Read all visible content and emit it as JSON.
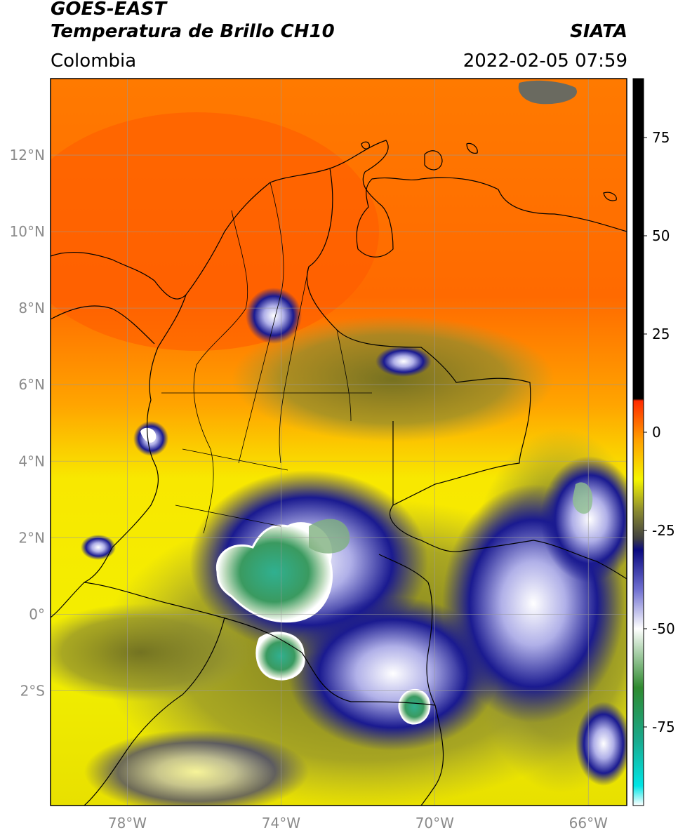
{
  "header": {
    "satellite": "GOES-EAST",
    "product": "Temperatura de Brillo CH10",
    "region": "Colombia",
    "agency": "SIATA",
    "datetime": "2022-02-05 07:59"
  },
  "map": {
    "lon_range": [
      -80,
      -65
    ],
    "lat_range": [
      -5,
      14
    ],
    "lat_ticks": [
      {
        "value": 12,
        "label": "12°N"
      },
      {
        "value": 10,
        "label": "10°N"
      },
      {
        "value": 8,
        "label": "8°N"
      },
      {
        "value": 6,
        "label": "6°N"
      },
      {
        "value": 4,
        "label": "4°N"
      },
      {
        "value": 2,
        "label": "2°N"
      },
      {
        "value": 0,
        "label": "0°"
      },
      {
        "value": -2,
        "label": "2°S"
      }
    ],
    "lon_ticks": [
      {
        "value": -78,
        "label": "78°W"
      },
      {
        "value": -74,
        "label": "74°W"
      },
      {
        "value": -70,
        "label": "70°W"
      },
      {
        "value": -66,
        "label": "66°W"
      }
    ],
    "grid": true
  },
  "colorbar": {
    "range": [
      -95,
      90
    ],
    "ticks": [
      {
        "value": 75,
        "label": "75"
      },
      {
        "value": 50,
        "label": "50"
      },
      {
        "value": 25,
        "label": "25"
      },
      {
        "value": 0,
        "label": "0"
      },
      {
        "value": -25,
        "label": "-25"
      },
      {
        "value": -50,
        "label": "-50"
      },
      {
        "value": -75,
        "label": "-75"
      }
    ],
    "stops": [
      {
        "value": -95,
        "color": "#ffffff"
      },
      {
        "value": -90,
        "color": "#00e5e5"
      },
      {
        "value": -78,
        "color": "#1aa88a"
      },
      {
        "value": -65,
        "color": "#2f8a2f"
      },
      {
        "value": -55,
        "color": "#b8d8b8"
      },
      {
        "value": -50,
        "color": "#ffffff"
      },
      {
        "value": -40,
        "color": "#6f6fd0"
      },
      {
        "value": -30,
        "color": "#0a0a80"
      },
      {
        "value": -27,
        "color": "#404040"
      },
      {
        "value": -20,
        "color": "#8a8a30"
      },
      {
        "value": -12,
        "color": "#f5f500"
      },
      {
        "value": -2,
        "color": "#ffa000"
      },
      {
        "value": 8,
        "color": "#ff2a00"
      },
      {
        "value": 8.5,
        "color": "#000000"
      },
      {
        "value": 90,
        "color": "#000000"
      }
    ]
  }
}
